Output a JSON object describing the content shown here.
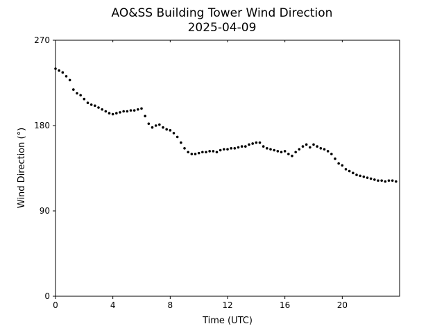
{
  "chart_data": {
    "type": "scatter",
    "title": "AO&SS Building Tower Wind Direction",
    "subtitle": "2025-04-09",
    "xlabel": "Time (UTC)",
    "ylabel": "Wind Direction (°)",
    "xlim": [
      0,
      24
    ],
    "ylim": [
      0,
      270
    ],
    "xticks": [
      0,
      4,
      8,
      12,
      16,
      20
    ],
    "yticks": [
      0,
      90,
      180,
      270
    ],
    "grid": false,
    "marker_color": "#000000",
    "series": [
      {
        "x": [
          0.0,
          0.25,
          0.5,
          0.75,
          1.0,
          1.25,
          1.5,
          1.75,
          2.0,
          2.25,
          2.5,
          2.75,
          3.0,
          3.25,
          3.5,
          3.75,
          4.0,
          4.25,
          4.5,
          4.75,
          5.0,
          5.25,
          5.5,
          5.75,
          6.0,
          6.25,
          6.5,
          6.75,
          7.0,
          7.25,
          7.5,
          7.75,
          8.0,
          8.25,
          8.5,
          8.75,
          9.0,
          9.25,
          9.5,
          9.75,
          10.0,
          10.25,
          10.5,
          10.75,
          11.0,
          11.25,
          11.5,
          11.75,
          12.0,
          12.25,
          12.5,
          12.75,
          13.0,
          13.25,
          13.5,
          13.75,
          14.0,
          14.25,
          14.5,
          14.75,
          15.0,
          15.25,
          15.5,
          15.75,
          16.0,
          16.25,
          16.5,
          16.75,
          17.0,
          17.25,
          17.5,
          17.75,
          18.0,
          18.25,
          18.5,
          18.75,
          19.0,
          19.25,
          19.5,
          19.75,
          20.0,
          20.25,
          20.5,
          20.75,
          21.0,
          21.25,
          21.5,
          21.75,
          22.0,
          22.25,
          22.5,
          22.75,
          23.0,
          23.25,
          23.5,
          23.75
        ],
        "y": [
          240,
          238,
          236,
          232,
          228,
          218,
          214,
          212,
          208,
          204,
          202,
          201,
          199,
          197,
          195,
          193,
          192,
          193,
          194,
          195,
          195,
          196,
          196,
          197,
          198,
          190,
          182,
          178,
          180,
          181,
          178,
          176,
          175,
          172,
          168,
          162,
          156,
          152,
          150,
          150,
          151,
          152,
          152,
          153,
          153,
          152,
          154,
          155,
          155,
          156,
          156,
          157,
          158,
          158,
          160,
          161,
          162,
          162,
          158,
          156,
          155,
          154,
          153,
          152,
          153,
          150,
          148,
          152,
          155,
          158,
          160,
          157,
          160,
          158,
          156,
          155,
          153,
          150,
          145,
          140,
          138,
          134,
          132,
          130,
          128,
          127,
          126,
          125,
          124,
          123,
          122,
          122,
          121,
          122,
          122,
          121
        ]
      }
    ]
  }
}
